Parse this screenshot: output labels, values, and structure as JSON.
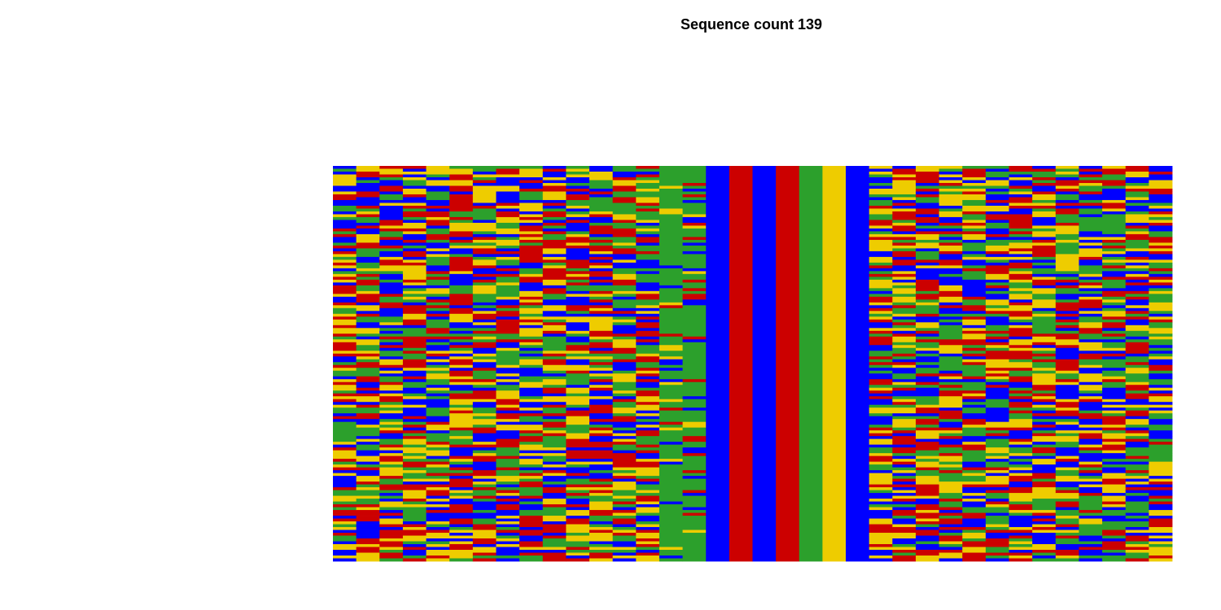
{
  "chart_data": {
    "type": "heatmap",
    "title": "Sequence count 139",
    "xlabel": "",
    "ylabel": "",
    "n_sequences": 139,
    "n_positions": 36,
    "alphabet": [
      "A",
      "C",
      "G",
      "T"
    ],
    "colors": {
      "A": "#2ca02c",
      "C": "#0000ff",
      "G": "#eecc00",
      "T": "#cc0000"
    },
    "column_profile": [
      "mixed",
      "mixed",
      "mixed",
      "mixed",
      "mixed",
      "mixed",
      "mixed",
      "mixed",
      "mixed",
      "mixed",
      "mixed",
      "mixed",
      "mixed",
      "mixed",
      "A-rich",
      "A-rich",
      "C",
      "T",
      "C",
      "T",
      "A",
      "G",
      "C",
      "mixed",
      "mixed",
      "mixed",
      "mixed",
      "mixed",
      "mixed",
      "mixed",
      "mixed",
      "mixed",
      "mixed",
      "mixed",
      "mixed",
      "mixed"
    ],
    "conserved_columns": {
      "16": [
        "C",
        139
      ],
      "17": [
        "T",
        139
      ],
      "18": [
        "C",
        139
      ],
      "19": [
        "T",
        139
      ],
      "20": [
        "A",
        139
      ],
      "21": [
        "G",
        139
      ],
      "22": [
        "C",
        139
      ]
    },
    "grid": false,
    "legend": "none",
    "seed": 139
  }
}
